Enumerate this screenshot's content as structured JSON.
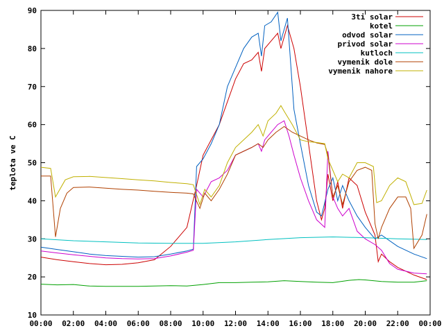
{
  "chart_data": {
    "type": "line",
    "title": "",
    "xlabel": "",
    "ylabel": "teplota ve C",
    "ylim": [
      10,
      90
    ],
    "xlim": [
      0,
      24
    ],
    "grid": false,
    "legend_position": "top-right",
    "x_ticks": [
      "00:00",
      "02:00",
      "04:00",
      "06:00",
      "08:00",
      "10:00",
      "12:00",
      "14:00",
      "16:00",
      "18:00",
      "20:00",
      "22:00",
      "00:00"
    ],
    "y_ticks": [
      10,
      20,
      30,
      40,
      50,
      60,
      70,
      80,
      90
    ],
    "series": [
      {
        "name": "3ti solar",
        "color": "#cc0000",
        "points": [
          [
            0,
            25.2
          ],
          [
            1,
            24.5
          ],
          [
            2,
            24.0
          ],
          [
            3,
            23.5
          ],
          [
            4,
            23.2
          ],
          [
            5,
            23.3
          ],
          [
            6,
            23.7
          ],
          [
            7,
            24.5
          ],
          [
            8,
            28
          ],
          [
            9,
            33
          ],
          [
            9.6,
            44
          ],
          [
            10,
            52
          ],
          [
            10.5,
            56
          ],
          [
            11,
            60
          ],
          [
            11.5,
            66
          ],
          [
            12,
            72
          ],
          [
            12.5,
            76
          ],
          [
            13,
            77
          ],
          [
            13.4,
            79
          ],
          [
            13.6,
            74
          ],
          [
            13.8,
            80
          ],
          [
            14.2,
            82
          ],
          [
            14.6,
            84
          ],
          [
            14.8,
            80
          ],
          [
            15.2,
            86
          ],
          [
            15.6,
            80
          ],
          [
            16,
            70
          ],
          [
            16.5,
            55
          ],
          [
            17,
            40
          ],
          [
            17.3,
            35
          ],
          [
            17.5,
            38
          ],
          [
            17.7,
            47
          ],
          [
            18,
            40
          ],
          [
            18.3,
            45
          ],
          [
            18.6,
            38
          ],
          [
            19,
            46
          ],
          [
            19.5,
            44
          ],
          [
            20,
            37
          ],
          [
            20.6,
            31
          ],
          [
            20.8,
            24
          ],
          [
            21,
            26
          ],
          [
            21.5,
            24
          ],
          [
            22,
            22.5
          ],
          [
            23,
            20.5
          ],
          [
            23.8,
            19.3
          ]
        ]
      },
      {
        "name": "kotel",
        "color": "#00a000",
        "points": [
          [
            0,
            18.1
          ],
          [
            1,
            17.9
          ],
          [
            2,
            18.0
          ],
          [
            3,
            17.6
          ],
          [
            4,
            17.5
          ],
          [
            5,
            17.5
          ],
          [
            6,
            17.5
          ],
          [
            7,
            17.6
          ],
          [
            8,
            17.7
          ],
          [
            9,
            17.6
          ],
          [
            10,
            18.0
          ],
          [
            11,
            18.5
          ],
          [
            12,
            18.5
          ],
          [
            13,
            18.6
          ],
          [
            14,
            18.7
          ],
          [
            15,
            19.0
          ],
          [
            16,
            18.8
          ],
          [
            17,
            18.6
          ],
          [
            18,
            18.5
          ],
          [
            19,
            19.1
          ],
          [
            19.6,
            19.3
          ],
          [
            20,
            19.2
          ],
          [
            21,
            18.8
          ],
          [
            22,
            18.6
          ],
          [
            23,
            18.6
          ],
          [
            23.8,
            19.0
          ]
        ]
      },
      {
        "name": "odvod solar",
        "color": "#0060c0",
        "points": [
          [
            0,
            27.8
          ],
          [
            1,
            27.2
          ],
          [
            2,
            26.6
          ],
          [
            3,
            26.0
          ],
          [
            4,
            25.6
          ],
          [
            5,
            25.4
          ],
          [
            6,
            25.2
          ],
          [
            7,
            25.3
          ],
          [
            8,
            26.0
          ],
          [
            9,
            26.8
          ],
          [
            9.4,
            27.3
          ],
          [
            9.6,
            49
          ],
          [
            10,
            51
          ],
          [
            10.5,
            55
          ],
          [
            11,
            60
          ],
          [
            11.5,
            70
          ],
          [
            12,
            75
          ],
          [
            12.5,
            80
          ],
          [
            13,
            83
          ],
          [
            13.4,
            84
          ],
          [
            13.6,
            78
          ],
          [
            13.8,
            86
          ],
          [
            14.2,
            87
          ],
          [
            14.6,
            89.5
          ],
          [
            14.8,
            82
          ],
          [
            15.2,
            88
          ],
          [
            15.6,
            64
          ],
          [
            16,
            55
          ],
          [
            16.5,
            44
          ],
          [
            17,
            37
          ],
          [
            17.3,
            36
          ],
          [
            17.7,
            43
          ],
          [
            18,
            46
          ],
          [
            18.3,
            40
          ],
          [
            18.6,
            44
          ],
          [
            19,
            40
          ],
          [
            19.5,
            36
          ],
          [
            20,
            33
          ],
          [
            20.6,
            30
          ],
          [
            21,
            31
          ],
          [
            22,
            28
          ],
          [
            23,
            26
          ],
          [
            23.8,
            24.8
          ]
        ]
      },
      {
        "name": "privod solar",
        "color": "#cc00cc",
        "points": [
          [
            0,
            26.8
          ],
          [
            1,
            26.3
          ],
          [
            2,
            25.8
          ],
          [
            3,
            25.4
          ],
          [
            4,
            25.0
          ],
          [
            5,
            24.8
          ],
          [
            6,
            24.7
          ],
          [
            7,
            24.8
          ],
          [
            8,
            25.5
          ],
          [
            9,
            26.5
          ],
          [
            9.4,
            27.0
          ],
          [
            9.6,
            43
          ],
          [
            10,
            41
          ],
          [
            10.5,
            45
          ],
          [
            11,
            46
          ],
          [
            11.5,
            48
          ],
          [
            12,
            52
          ],
          [
            12.5,
            53
          ],
          [
            13,
            54
          ],
          [
            13.4,
            55
          ],
          [
            13.6,
            53
          ],
          [
            13.8,
            56
          ],
          [
            14.2,
            58
          ],
          [
            14.6,
            60
          ],
          [
            15,
            61
          ],
          [
            15.3,
            57
          ],
          [
            15.6,
            52
          ],
          [
            16,
            46
          ],
          [
            16.5,
            40
          ],
          [
            17,
            35
          ],
          [
            17.5,
            33
          ],
          [
            17.7,
            53
          ],
          [
            18,
            41
          ],
          [
            18.3,
            38
          ],
          [
            18.6,
            36
          ],
          [
            19,
            38
          ],
          [
            19.5,
            32
          ],
          [
            20,
            30
          ],
          [
            20.6,
            28.5
          ],
          [
            21,
            27
          ],
          [
            21.5,
            23.5
          ],
          [
            22,
            22
          ],
          [
            23,
            21
          ],
          [
            23.8,
            20.8
          ]
        ]
      },
      {
        "name": "kutloch",
        "color": "#00c0c0",
        "points": [
          [
            0,
            30.0
          ],
          [
            2,
            29.5
          ],
          [
            4,
            29.2
          ],
          [
            6,
            28.9
          ],
          [
            8,
            28.8
          ],
          [
            10,
            28.8
          ],
          [
            12,
            29.2
          ],
          [
            14,
            29.8
          ],
          [
            16,
            30.3
          ],
          [
            18,
            30.5
          ],
          [
            20,
            30.3
          ],
          [
            22,
            30.0
          ],
          [
            23.8,
            29.8
          ]
        ]
      },
      {
        "name": "vymenik dole",
        "color": "#b04000",
        "points": [
          [
            0,
            46.5
          ],
          [
            0.6,
            46.5
          ],
          [
            0.9,
            30.5
          ],
          [
            1.2,
            38
          ],
          [
            1.6,
            42
          ],
          [
            2,
            43.5
          ],
          [
            3,
            43.6
          ],
          [
            4,
            43.3
          ],
          [
            5,
            43.0
          ],
          [
            6,
            42.8
          ],
          [
            7,
            42.5
          ],
          [
            8,
            42.2
          ],
          [
            9,
            42.0
          ],
          [
            9.4,
            41.8
          ],
          [
            9.8,
            38
          ],
          [
            10.1,
            42
          ],
          [
            10.5,
            40
          ],
          [
            11,
            43
          ],
          [
            11.5,
            47
          ],
          [
            12,
            52
          ],
          [
            12.5,
            53
          ],
          [
            13,
            54
          ],
          [
            13.4,
            55
          ],
          [
            13.7,
            54
          ],
          [
            14,
            56
          ],
          [
            14.5,
            58
          ],
          [
            15,
            59.5
          ],
          [
            15.5,
            58
          ],
          [
            16,
            57
          ],
          [
            16.5,
            56
          ],
          [
            17,
            55.2
          ],
          [
            17.5,
            54.8
          ],
          [
            17.7,
            52
          ],
          [
            18,
            41
          ],
          [
            18.3,
            44
          ],
          [
            18.6,
            39
          ],
          [
            19,
            45
          ],
          [
            19.5,
            48
          ],
          [
            20,
            48.8
          ],
          [
            20.4,
            48
          ],
          [
            20.6,
            34
          ],
          [
            20.8,
            30
          ],
          [
            21,
            33
          ],
          [
            21.5,
            38
          ],
          [
            22,
            41
          ],
          [
            22.5,
            41
          ],
          [
            22.8,
            38
          ],
          [
            23,
            27.5
          ],
          [
            23.5,
            31
          ],
          [
            23.8,
            36.5
          ]
        ]
      },
      {
        "name": "vymenik nahore",
        "color": "#c0b000",
        "points": [
          [
            0,
            48.8
          ],
          [
            0.6,
            48.5
          ],
          [
            0.9,
            41
          ],
          [
            1.5,
            45.5
          ],
          [
            2,
            46.3
          ],
          [
            3,
            46.4
          ],
          [
            4,
            46.1
          ],
          [
            5,
            45.8
          ],
          [
            6,
            45.5
          ],
          [
            7,
            45.2
          ],
          [
            8,
            44.8
          ],
          [
            9,
            44.5
          ],
          [
            9.4,
            44.2
          ],
          [
            9.8,
            39
          ],
          [
            10.1,
            43
          ],
          [
            10.5,
            41
          ],
          [
            11,
            44
          ],
          [
            11.5,
            50
          ],
          [
            12,
            54
          ],
          [
            12.5,
            56
          ],
          [
            13,
            58
          ],
          [
            13.4,
            60
          ],
          [
            13.7,
            57
          ],
          [
            14,
            61
          ],
          [
            14.5,
            63
          ],
          [
            14.8,
            65
          ],
          [
            15,
            63.5
          ],
          [
            15.5,
            60
          ],
          [
            16,
            56
          ],
          [
            16.5,
            55.5
          ],
          [
            17,
            55.3
          ],
          [
            17.5,
            55.0
          ],
          [
            17.7,
            51
          ],
          [
            18,
            48
          ],
          [
            18.3,
            45
          ],
          [
            18.6,
            47
          ],
          [
            19,
            46
          ],
          [
            19.5,
            50
          ],
          [
            20,
            50
          ],
          [
            20.5,
            49
          ],
          [
            20.7,
            39.5
          ],
          [
            21,
            40
          ],
          [
            21.5,
            44
          ],
          [
            22,
            46
          ],
          [
            22.5,
            45
          ],
          [
            23,
            39
          ],
          [
            23.5,
            39.3
          ],
          [
            23.8,
            42.8
          ]
        ]
      }
    ]
  }
}
